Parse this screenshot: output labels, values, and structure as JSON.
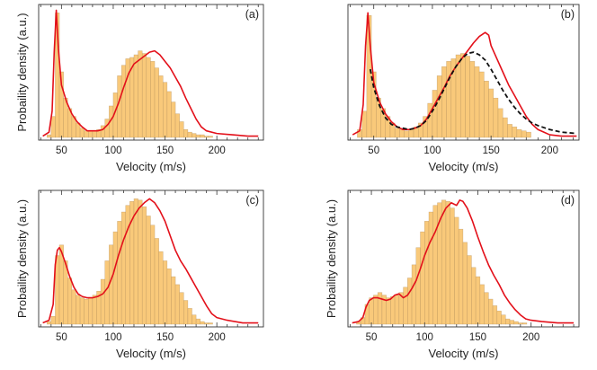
{
  "figure": {
    "hist_fill": "#f9c97a",
    "hist_stroke": "#b08a55",
    "curve_color": "#e3101a",
    "fit_color": "#111111"
  },
  "chart_data": [
    {
      "type": "bar",
      "panel_label": "(a)",
      "xlabel": "Velocity (m/s)",
      "ylabel": "Probaility density (a.u.)",
      "xlim": [
        28,
        245
      ],
      "ylim": [
        0,
        1.0
      ],
      "xticks": [
        50,
        100,
        150,
        200
      ],
      "yticks_labeled": false,
      "histogram": {
        "bin_start": 36,
        "bin_width": 4,
        "values": [
          0.02,
          0.16,
          0.95,
          0.5,
          0.3,
          0.22,
          0.16,
          0.11,
          0.07,
          0.05,
          0.05,
          0.05,
          0.06,
          0.09,
          0.14,
          0.24,
          0.34,
          0.47,
          0.55,
          0.6,
          0.61,
          0.63,
          0.66,
          0.64,
          0.61,
          0.58,
          0.53,
          0.47,
          0.42,
          0.35,
          0.27,
          0.18,
          0.12,
          0.06,
          0.04,
          0.03,
          0.02,
          0.02,
          0.01,
          0.01
        ]
      },
      "curves": [
        {
          "style": "solid",
          "points": [
            [
              32,
              0.01
            ],
            [
              38,
              0.04
            ],
            [
              41,
              0.2
            ],
            [
              43,
              0.65
            ],
            [
              45,
              0.97
            ],
            [
              47,
              0.68
            ],
            [
              50,
              0.4
            ],
            [
              55,
              0.27
            ],
            [
              60,
              0.18
            ],
            [
              65,
              0.12
            ],
            [
              70,
              0.08
            ],
            [
              75,
              0.05
            ],
            [
              80,
              0.05
            ],
            [
              85,
              0.05
            ],
            [
              90,
              0.06
            ],
            [
              95,
              0.1
            ],
            [
              100,
              0.16
            ],
            [
              105,
              0.26
            ],
            [
              110,
              0.38
            ],
            [
              115,
              0.49
            ],
            [
              120,
              0.56
            ],
            [
              125,
              0.59
            ],
            [
              130,
              0.62
            ],
            [
              135,
              0.65
            ],
            [
              140,
              0.66
            ],
            [
              145,
              0.63
            ],
            [
              150,
              0.58
            ],
            [
              155,
              0.53
            ],
            [
              160,
              0.46
            ],
            [
              165,
              0.39
            ],
            [
              170,
              0.3
            ],
            [
              175,
              0.22
            ],
            [
              180,
              0.14
            ],
            [
              185,
              0.08
            ],
            [
              190,
              0.05
            ],
            [
              200,
              0.03
            ],
            [
              215,
              0.02
            ],
            [
              230,
              0.01
            ],
            [
              240,
              0.01
            ]
          ]
        }
      ]
    },
    {
      "type": "bar",
      "panel_label": "(b)",
      "xlabel": "Velocity (m/s)",
      "ylabel": "",
      "xlim": [
        28,
        225
      ],
      "ylim": [
        0,
        1.0
      ],
      "xticks": [
        50,
        100,
        150,
        200
      ],
      "yticks_labeled": false,
      "histogram": {
        "bin_start": 36,
        "bin_width": 4,
        "values": [
          0.06,
          0.2,
          0.93,
          0.5,
          0.3,
          0.22,
          0.16,
          0.11,
          0.07,
          0.06,
          0.05,
          0.06,
          0.08,
          0.11,
          0.16,
          0.26,
          0.36,
          0.47,
          0.54,
          0.58,
          0.6,
          0.63,
          0.64,
          0.62,
          0.58,
          0.54,
          0.5,
          0.43,
          0.37,
          0.3,
          0.22,
          0.15,
          0.1,
          0.08,
          0.06,
          0.05,
          0.04
        ]
      },
      "curves": [
        {
          "style": "solid",
          "points": [
            [
              32,
              0.02
            ],
            [
              38,
              0.05
            ],
            [
              41,
              0.25
            ],
            [
              43,
              0.7
            ],
            [
              45,
              0.95
            ],
            [
              47,
              0.7
            ],
            [
              50,
              0.42
            ],
            [
              55,
              0.27
            ],
            [
              60,
              0.18
            ],
            [
              65,
              0.12
            ],
            [
              70,
              0.08
            ],
            [
              75,
              0.06
            ],
            [
              80,
              0.06
            ],
            [
              85,
              0.07
            ],
            [
              90,
              0.09
            ],
            [
              95,
              0.14
            ],
            [
              100,
              0.22
            ],
            [
              105,
              0.3
            ],
            [
              110,
              0.38
            ],
            [
              115,
              0.47
            ],
            [
              120,
              0.54
            ],
            [
              125,
              0.6
            ],
            [
              130,
              0.66
            ],
            [
              135,
              0.72
            ],
            [
              140,
              0.77
            ],
            [
              145,
              0.8
            ],
            [
              148,
              0.78
            ],
            [
              150,
              0.7
            ],
            [
              155,
              0.6
            ],
            [
              160,
              0.5
            ],
            [
              165,
              0.4
            ],
            [
              170,
              0.32
            ],
            [
              175,
              0.24
            ],
            [
              180,
              0.16
            ],
            [
              185,
              0.1
            ],
            [
              190,
              0.06
            ],
            [
              195,
              0.04
            ],
            [
              200,
              0.02
            ],
            [
              210,
              0.01
            ],
            [
              223,
              0.01
            ]
          ]
        },
        {
          "style": "dashed",
          "points": [
            [
              47,
              0.52
            ],
            [
              50,
              0.38
            ],
            [
              55,
              0.24
            ],
            [
              60,
              0.15
            ],
            [
              65,
              0.1
            ],
            [
              70,
              0.08
            ],
            [
              75,
              0.07
            ],
            [
              80,
              0.06
            ],
            [
              85,
              0.07
            ],
            [
              90,
              0.09
            ],
            [
              95,
              0.13
            ],
            [
              100,
              0.2
            ],
            [
              105,
              0.28
            ],
            [
              110,
              0.37
            ],
            [
              115,
              0.46
            ],
            [
              120,
              0.54
            ],
            [
              125,
              0.6
            ],
            [
              130,
              0.64
            ],
            [
              135,
              0.65
            ],
            [
              140,
              0.63
            ],
            [
              145,
              0.59
            ],
            [
              150,
              0.52
            ],
            [
              155,
              0.44
            ],
            [
              160,
              0.36
            ],
            [
              165,
              0.29
            ],
            [
              170,
              0.23
            ],
            [
              175,
              0.18
            ],
            [
              180,
              0.14
            ],
            [
              185,
              0.11
            ],
            [
              190,
              0.09
            ],
            [
              200,
              0.06
            ],
            [
              210,
              0.04
            ],
            [
              223,
              0.03
            ]
          ]
        }
      ]
    },
    {
      "type": "bar",
      "panel_label": "(c)",
      "xlabel": "Velocity (m/s)",
      "ylabel": "Probaility density (a.u.)",
      "xlim": [
        28,
        245
      ],
      "ylim": [
        0,
        1.0
      ],
      "xticks": [
        50,
        100,
        150,
        200
      ],
      "yticks_labeled": false,
      "histogram": {
        "bin_start": 36,
        "bin_width": 4,
        "values": [
          0.02,
          0.06,
          0.52,
          0.6,
          0.48,
          0.35,
          0.26,
          0.22,
          0.2,
          0.19,
          0.2,
          0.22,
          0.25,
          0.34,
          0.48,
          0.6,
          0.7,
          0.78,
          0.85,
          0.9,
          0.93,
          0.95,
          0.94,
          0.89,
          0.82,
          0.75,
          0.65,
          0.55,
          0.48,
          0.42,
          0.36,
          0.3,
          0.24,
          0.18,
          0.12,
          0.07,
          0.04,
          0.02,
          0.01,
          0.01
        ]
      },
      "curves": [
        {
          "style": "solid",
          "points": [
            [
              32,
              0.01
            ],
            [
              38,
              0.03
            ],
            [
              42,
              0.15
            ],
            [
              44,
              0.45
            ],
            [
              46,
              0.56
            ],
            [
              48,
              0.58
            ],
            [
              50,
              0.55
            ],
            [
              54,
              0.46
            ],
            [
              58,
              0.36
            ],
            [
              62,
              0.28
            ],
            [
              66,
              0.23
            ],
            [
              70,
              0.21
            ],
            [
              75,
              0.2
            ],
            [
              80,
              0.2
            ],
            [
              85,
              0.21
            ],
            [
              90,
              0.23
            ],
            [
              95,
              0.28
            ],
            [
              100,
              0.38
            ],
            [
              105,
              0.52
            ],
            [
              110,
              0.64
            ],
            [
              115,
              0.74
            ],
            [
              120,
              0.82
            ],
            [
              125,
              0.88
            ],
            [
              130,
              0.92
            ],
            [
              135,
              0.95
            ],
            [
              140,
              0.92
            ],
            [
              145,
              0.86
            ],
            [
              150,
              0.78
            ],
            [
              155,
              0.67
            ],
            [
              160,
              0.56
            ],
            [
              165,
              0.48
            ],
            [
              170,
              0.42
            ],
            [
              175,
              0.35
            ],
            [
              180,
              0.28
            ],
            [
              185,
              0.21
            ],
            [
              190,
              0.14
            ],
            [
              195,
              0.08
            ],
            [
              200,
              0.05
            ],
            [
              210,
              0.03
            ],
            [
              225,
              0.01
            ],
            [
              240,
              0.01
            ]
          ]
        }
      ]
    },
    {
      "type": "bar",
      "panel_label": "(d)",
      "xlabel": "Velocity (m/s)",
      "ylabel": "Probaility density (a.u.)",
      "xlim": [
        28,
        245
      ],
      "ylim": [
        0,
        1.0
      ],
      "xticks": [
        50,
        100,
        150,
        200
      ],
      "yticks_labeled": false,
      "histogram": {
        "bin_start": 36,
        "bin_width": 4,
        "values": [
          0.02,
          0.05,
          0.15,
          0.2,
          0.22,
          0.24,
          0.22,
          0.2,
          0.21,
          0.22,
          0.24,
          0.28,
          0.35,
          0.45,
          0.58,
          0.7,
          0.78,
          0.85,
          0.9,
          0.92,
          0.94,
          0.93,
          0.88,
          0.81,
          0.72,
          0.62,
          0.52,
          0.43,
          0.36,
          0.3,
          0.24,
          0.19,
          0.14,
          0.1,
          0.07,
          0.04,
          0.03,
          0.02,
          0.01,
          0.01
        ]
      },
      "curves": [
        {
          "style": "solid",
          "points": [
            [
              32,
              0.01
            ],
            [
              38,
              0.02
            ],
            [
              42,
              0.05
            ],
            [
              45,
              0.13
            ],
            [
              48,
              0.18
            ],
            [
              52,
              0.2
            ],
            [
              56,
              0.2
            ],
            [
              60,
              0.19
            ],
            [
              64,
              0.18
            ],
            [
              68,
              0.19
            ],
            [
              72,
              0.22
            ],
            [
              76,
              0.23
            ],
            [
              80,
              0.2
            ],
            [
              84,
              0.22
            ],
            [
              88,
              0.27
            ],
            [
              92,
              0.33
            ],
            [
              96,
              0.42
            ],
            [
              100,
              0.52
            ],
            [
              105,
              0.62
            ],
            [
              110,
              0.7
            ],
            [
              115,
              0.8
            ],
            [
              120,
              0.88
            ],
            [
              125,
              0.92
            ],
            [
              130,
              0.9
            ],
            [
              133,
              0.94
            ],
            [
              136,
              0.93
            ],
            [
              140,
              0.88
            ],
            [
              145,
              0.78
            ],
            [
              150,
              0.66
            ],
            [
              155,
              0.55
            ],
            [
              160,
              0.45
            ],
            [
              165,
              0.37
            ],
            [
              170,
              0.3
            ],
            [
              175,
              0.22
            ],
            [
              180,
              0.16
            ],
            [
              185,
              0.11
            ],
            [
              190,
              0.07
            ],
            [
              195,
              0.04
            ],
            [
              200,
              0.03
            ],
            [
              210,
              0.02
            ],
            [
              225,
              0.01
            ],
            [
              240,
              0.01
            ]
          ]
        }
      ]
    }
  ]
}
